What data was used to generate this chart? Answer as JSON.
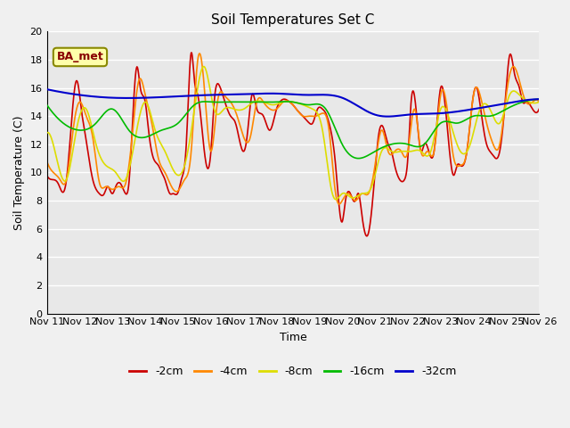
{
  "title": "Soil Temperatures Set C",
  "xlabel": "Time",
  "ylabel": "Soil Temperature (C)",
  "ylim": [
    0,
    20
  ],
  "yticks": [
    0,
    2,
    4,
    6,
    8,
    10,
    12,
    14,
    16,
    18,
    20
  ],
  "x_tick_labels": [
    "Nov 11",
    "Nov 12",
    "Nov 13",
    "Nov 14",
    "Nov 15",
    "Nov 16",
    "Nov 17",
    "Nov 18",
    "Nov 19",
    "Nov 20",
    "Nov 21",
    "Nov 22",
    "Nov 23",
    "Nov 24",
    "Nov 25",
    "Nov 26"
  ],
  "annotation_text": "BA_met",
  "plot_bg_color": "#e8e8e8",
  "fig_bg_color": "#f0f0f0",
  "colors": {
    "2cm": "#cc0000",
    "4cm": "#ff8800",
    "8cm": "#dddd00",
    "16cm": "#00bb00",
    "32cm": "#0000cc"
  },
  "linewidth": 1.2,
  "grid_color": "#ffffff",
  "title_fontsize": 11,
  "label_fontsize": 9,
  "tick_fontsize": 8,
  "legend_fontsize": 9,
  "annot_fontsize": 9,
  "annot_color": "#880000",
  "annot_bg": "#ffffaa",
  "annot_edge": "#888800"
}
